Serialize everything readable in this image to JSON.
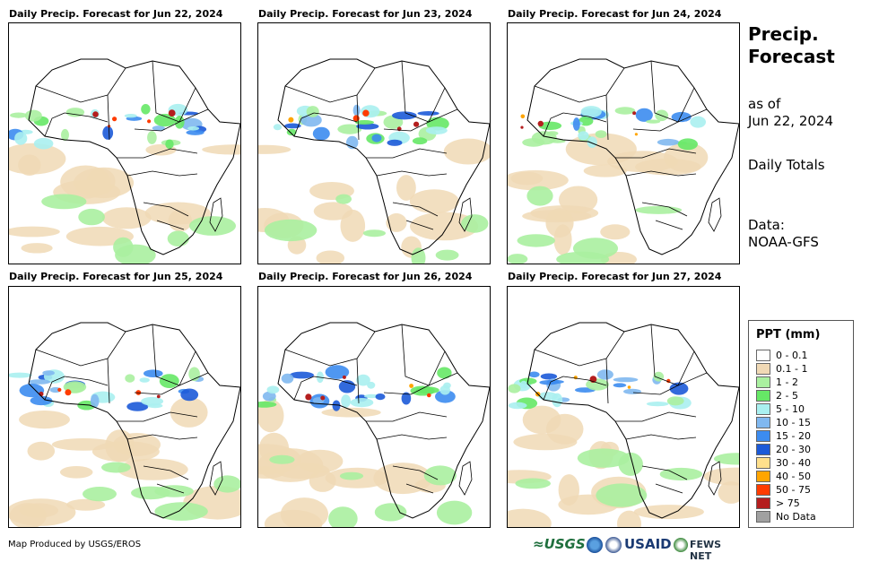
{
  "panels": [
    {
      "title": "Daily Precip. Forecast for Jun 22, 2024"
    },
    {
      "title": "Daily Precip. Forecast for Jun 23, 2024"
    },
    {
      "title": "Daily Precip. Forecast for Jun 24, 2024"
    },
    {
      "title": "Daily Precip. Forecast for Jun 25, 2024"
    },
    {
      "title": "Daily Precip. Forecast for Jun 26, 2024"
    },
    {
      "title": "Daily Precip. Forecast for Jun 27, 2024"
    }
  ],
  "sidebar": {
    "title_line1": "Precip.",
    "title_line2": "Forecast",
    "asof_line1": "as of",
    "asof_line2": "Jun 22, 2024",
    "totals": "Daily Totals",
    "data_line1": "Data:",
    "data_line2": "NOAA-GFS"
  },
  "legend": {
    "title": "PPT (mm)",
    "items": [
      {
        "label": "0 - 0.1",
        "color": "#ffffff"
      },
      {
        "label": "0.1 - 1",
        "color": "#f0d9b5"
      },
      {
        "label": "1 - 2",
        "color": "#aaf0a0"
      },
      {
        "label": "2 - 5",
        "color": "#66e866"
      },
      {
        "label": "5 - 10",
        "color": "#aaf0f0"
      },
      {
        "label": "10 - 15",
        "color": "#80b8f0"
      },
      {
        "label": "15 - 20",
        "color": "#3c8cf0"
      },
      {
        "label": "20 - 30",
        "color": "#1c5ad8"
      },
      {
        "label": "30 - 40",
        "color": "#ffe08c"
      },
      {
        "label": "40 - 50",
        "color": "#ffa500"
      },
      {
        "label": "50 - 75",
        "color": "#ff3c00"
      },
      {
        "label": "> 75",
        "color": "#b41e1e"
      },
      {
        "label": "No Data",
        "color": "#a0a0a0"
      }
    ]
  },
  "footer": {
    "credit": "Map Produced by USGS/EROS",
    "logo_usgs": "≈USGS",
    "logo_usaid": "USAID",
    "logo_fews": "FEWS NET"
  }
}
